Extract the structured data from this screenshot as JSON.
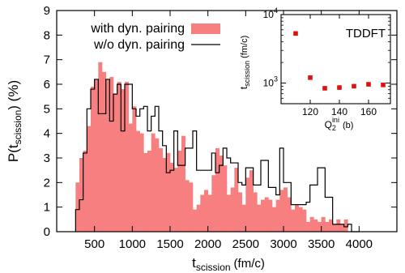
{
  "chart_data": [
    {
      "type": "histogram",
      "xlabel": "t",
      "xlabel_sub": "scission",
      "xlabel_unit": "(fm/c)",
      "ylabel_pre": "P(t",
      "ylabel_sub": "scission",
      "ylabel_post": ") (%)",
      "xlim": [
        0,
        4500
      ],
      "ylim": [
        0,
        9
      ],
      "xticks": [
        500,
        1000,
        1500,
        2000,
        2500,
        3000,
        3500,
        4000
      ],
      "yticks": [
        0,
        1,
        2,
        3,
        4,
        5,
        6,
        7,
        8,
        9
      ],
      "grid": false,
      "legend_position": "top-left",
      "series": [
        {
          "name": "with dyn. pairing",
          "style": "filled",
          "color": "#f77f7f",
          "bin_start": 250,
          "bin_width": 50,
          "values": [
            2.0,
            3.0,
            3.3,
            4.3,
            5.9,
            6.2,
            6.9,
            6.5,
            6.2,
            6.3,
            5.6,
            6.1,
            5.8,
            6.1,
            4.4,
            5.1,
            4.1,
            4.0,
            3.2,
            3.3,
            4.0,
            3.8,
            3.4,
            3.0,
            3.2,
            2.8,
            2.6,
            3.3,
            3.9,
            2.1,
            2.0,
            0.9,
            1.1,
            1.5,
            1.7,
            1.5,
            2.3,
            3.4,
            3.1,
            2.7,
            1.5,
            1.8,
            2.6,
            1.6,
            1.1,
            2.2,
            2.5,
            1.6,
            1.1,
            1.3,
            1.4,
            1.3,
            1.0,
            1.3,
            1.7,
            1.8,
            1.4,
            0.9,
            1.1,
            1.0,
            0.9,
            0.4,
            0.6,
            0.5,
            0.4,
            0.6,
            0.4,
            0.5,
            0.3,
            0.5,
            0.3,
            0.5,
            0,
            0,
            0
          ]
        },
        {
          "name": "w/o dyn. pairing",
          "style": "step",
          "color": "#000000",
          "bin_start": 250,
          "bin_width": 50,
          "values": [
            0.9,
            1.3,
            3.2,
            5.0,
            5.8,
            6.2,
            4.8,
            4.8,
            6.2,
            4.5,
            5.6,
            6.0,
            4.1,
            6.0,
            6.0,
            5.0,
            4.7,
            5.0,
            5.1,
            4.1,
            4.7,
            5.1,
            4.1,
            3.5,
            2.4,
            2.5,
            4.1,
            2.7,
            2.7,
            3.4,
            3.4,
            4.1,
            2.5,
            2.5,
            2.5,
            2.5,
            3.2,
            2.4,
            2.7,
            3.4,
            3.0,
            2.8,
            2.8,
            2.0,
            1.9,
            2.6,
            2.6,
            1.9,
            1.9,
            2.9,
            2.9,
            1.8,
            1.8,
            1.5,
            3.4,
            2.0,
            2.0,
            1.1,
            1.1,
            1.1,
            1.1,
            1.2,
            1.9,
            1.9,
            2.6,
            2.6,
            1.4,
            1.4,
            0.3,
            0.3,
            0.3,
            0.2,
            0.3,
            0,
            0
          ]
        }
      ]
    },
    {
      "type": "scatter",
      "title": "TDDFT",
      "xlabel": "Q",
      "xlabel_sub": "2",
      "xlabel_sup": "ini",
      "xlabel_unit": "(b)",
      "ylabel": "t",
      "ylabel_sub": "scission",
      "ylabel_unit": "(fm/c)",
      "xlim": [
        100,
        175
      ],
      "ylim": [
        500,
        10000
      ],
      "yscale": "log",
      "xticks": [
        120,
        140,
        160
      ],
      "yticks": [
        {
          "base": "10",
          "exp": "3",
          "value": 1000
        },
        {
          "base": "10",
          "exp": "4",
          "value": 10000
        }
      ],
      "color": "#dd1111",
      "points": [
        {
          "x": 110,
          "y": 5300
        },
        {
          "x": 120,
          "y": 1200
        },
        {
          "x": 130,
          "y": 840
        },
        {
          "x": 140,
          "y": 860
        },
        {
          "x": 150,
          "y": 900
        },
        {
          "x": 160,
          "y": 960
        },
        {
          "x": 170,
          "y": 940
        }
      ]
    }
  ]
}
